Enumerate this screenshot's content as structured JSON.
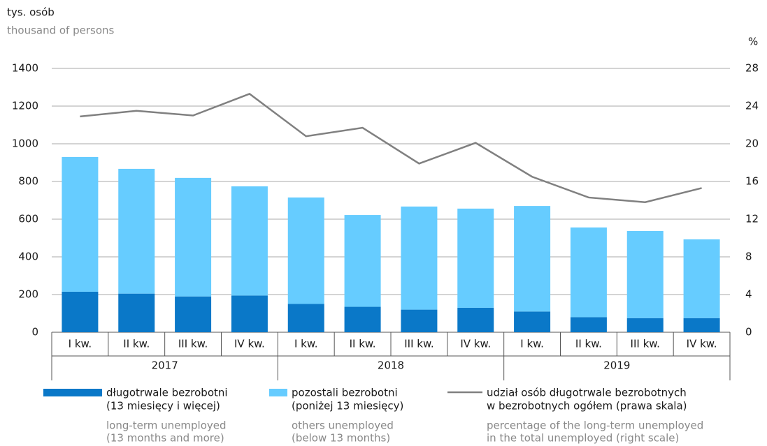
{
  "chart_data": {
    "type": "bar",
    "stacked": true,
    "y_label": [
      "tys. osób",
      "thousand of persons"
    ],
    "y2_label": "%",
    "categories": [
      "I kw.",
      "II kw.",
      "III kw.",
      "IV kw.",
      "I kw.",
      "II kw.",
      "III kw.",
      "IV kw.",
      "I kw.",
      "II kw.",
      "III kw.",
      "IV kw."
    ],
    "years": [
      "2017",
      "2018",
      "2019"
    ],
    "series": [
      {
        "name": [
          "długotrwale bezrobotni",
          "(13 miesięcy i więcej)"
        ],
        "name_en": [
          "long-term unemployed",
          "(13 months and more)"
        ],
        "color": "#0a78c8",
        "type": "bar",
        "values": [
          215,
          205,
          190,
          195,
          150,
          135,
          120,
          130,
          110,
          80,
          75,
          75
        ]
      },
      {
        "name": [
          "pozostali bezrobotni",
          "(poniżej 13 miesięcy)"
        ],
        "name_en": [
          "others unemployed",
          "(below 13 months)"
        ],
        "color": "#66ccff",
        "type": "bar",
        "values": [
          715,
          662,
          629,
          579,
          565,
          487,
          547,
          526,
          560,
          476,
          462,
          418
        ]
      },
      {
        "name": [
          "udział osób długotrwale bezrobotnych",
          "w bezrobotnych ogółem (prawa skala)"
        ],
        "name_en": [
          "percentage of the long-term unemployed",
          "in the total unemployed (right scale)"
        ],
        "color": "#808080",
        "type": "line",
        "axis": "y2",
        "values": [
          22.9,
          23.5,
          23.0,
          25.3,
          20.8,
          21.7,
          17.9,
          20.1,
          16.5,
          14.3,
          13.8,
          15.3
        ]
      }
    ],
    "ylim": [
      0,
      1400
    ],
    "yticks": [
      0,
      200,
      400,
      600,
      800,
      1000,
      1200,
      1400
    ],
    "y2lim": [
      0,
      28
    ],
    "y2ticks": [
      0,
      4,
      8,
      12,
      16,
      20,
      24,
      28
    ],
    "grid": true
  }
}
